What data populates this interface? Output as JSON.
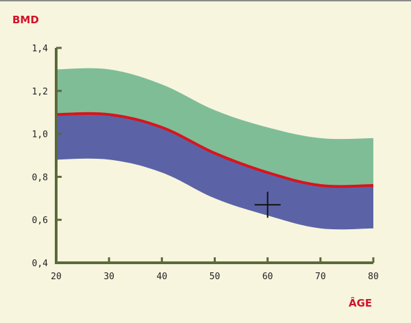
{
  "chart_data": {
    "type": "area",
    "ylabel": "BMD",
    "xlabel": "ÂGE",
    "xlim": [
      20,
      80
    ],
    "ylim": [
      0.4,
      1.4
    ],
    "x_ticks": [
      20,
      30,
      40,
      50,
      60,
      70,
      80
    ],
    "y_ticks": [
      "0,4",
      "0,6",
      "0,8",
      "1,0",
      "1,2",
      "1,4"
    ],
    "y_tick_values": [
      0.4,
      0.6,
      0.8,
      1.0,
      1.2,
      1.4
    ],
    "x": [
      20,
      30,
      40,
      50,
      60,
      70,
      80
    ],
    "upper_band": [
      1.3,
      1.3,
      1.23,
      1.11,
      1.03,
      0.98,
      0.98
    ],
    "mean_line": [
      1.09,
      1.09,
      1.03,
      0.91,
      0.82,
      0.76,
      0.76
    ],
    "lower_band": [
      0.88,
      0.88,
      0.82,
      0.7,
      0.62,
      0.56,
      0.56
    ],
    "marker": {
      "x": 60,
      "y": 0.67,
      "symbol": "+"
    },
    "grid": false,
    "colors": {
      "upper_band": "#7fbd97",
      "lower_band": "#5b63a6",
      "mean_line": "#d8141e",
      "axis": "#5a6a3a",
      "background": "#f7f5de",
      "label": "#d2132a"
    }
  }
}
